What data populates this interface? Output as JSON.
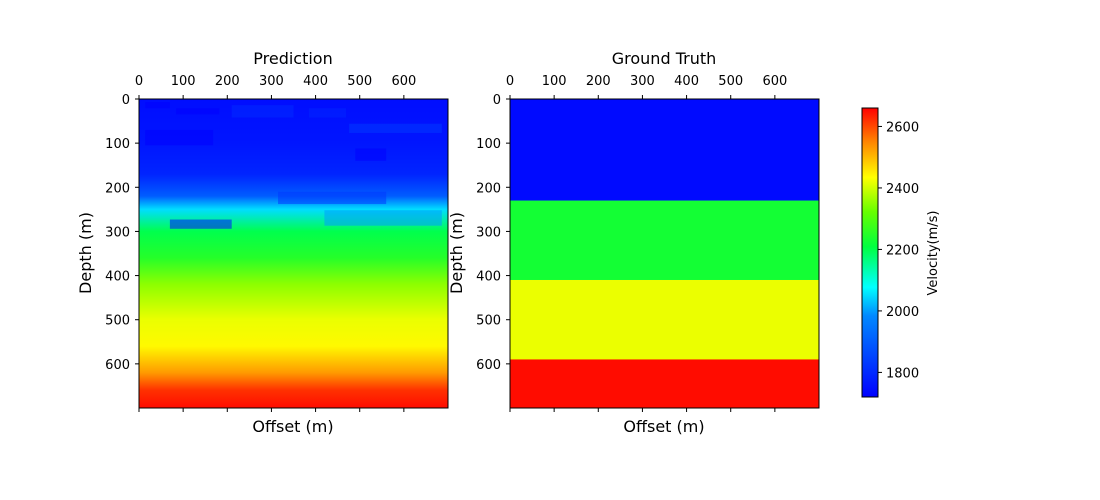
{
  "chart_data": [
    {
      "type": "heatmap",
      "title": "Prediction",
      "xlabel": "Offset (m)",
      "ylabel": "Depth (m)",
      "x_ticks": [
        0,
        100,
        200,
        300,
        400,
        500,
        600
      ],
      "y_ticks": [
        0,
        100,
        200,
        300,
        400,
        500,
        600
      ],
      "xlim": [
        0,
        700
      ],
      "ylim": [
        700,
        0
      ],
      "x_tick_position": "top",
      "grid": false,
      "colormap": "jet-like",
      "velocity_profile": [
        {
          "depth": 0,
          "velocity": 1745
        },
        {
          "depth": 100,
          "velocity": 1760
        },
        {
          "depth": 170,
          "velocity": 1790
        },
        {
          "depth": 220,
          "velocity": 1900
        },
        {
          "depth": 250,
          "velocity": 2050
        },
        {
          "depth": 300,
          "velocity": 2200
        },
        {
          "depth": 360,
          "velocity": 2250
        },
        {
          "depth": 420,
          "velocity": 2350
        },
        {
          "depth": 500,
          "velocity": 2420
        },
        {
          "depth": 560,
          "velocity": 2440
        },
        {
          "depth": 620,
          "velocity": 2530
        },
        {
          "depth": 660,
          "velocity": 2620
        },
        {
          "depth": 700,
          "velocity": 2650
        }
      ]
    },
    {
      "type": "heatmap",
      "title": "Ground Truth",
      "xlabel": "Offset (m)",
      "ylabel": "Depth (m)",
      "x_ticks": [
        0,
        100,
        200,
        300,
        400,
        500,
        600
      ],
      "y_ticks": [
        0,
        100,
        200,
        300,
        400,
        500,
        600
      ],
      "xlim": [
        0,
        700
      ],
      "ylim": [
        700,
        0
      ],
      "x_tick_position": "top",
      "grid": false,
      "layers": [
        {
          "top": 0,
          "bottom": 230,
          "velocity": 1740
        },
        {
          "top": 230,
          "bottom": 410,
          "velocity": 2230
        },
        {
          "top": 410,
          "bottom": 590,
          "velocity": 2420
        },
        {
          "top": 590,
          "bottom": 700,
          "velocity": 2650
        }
      ]
    }
  ],
  "colorbar": {
    "label": "Velocity(m/s)",
    "ticks": [
      1800,
      2000,
      2200,
      2400,
      2600
    ],
    "vmin": 1720,
    "vmax": 2660,
    "placement": "right"
  }
}
